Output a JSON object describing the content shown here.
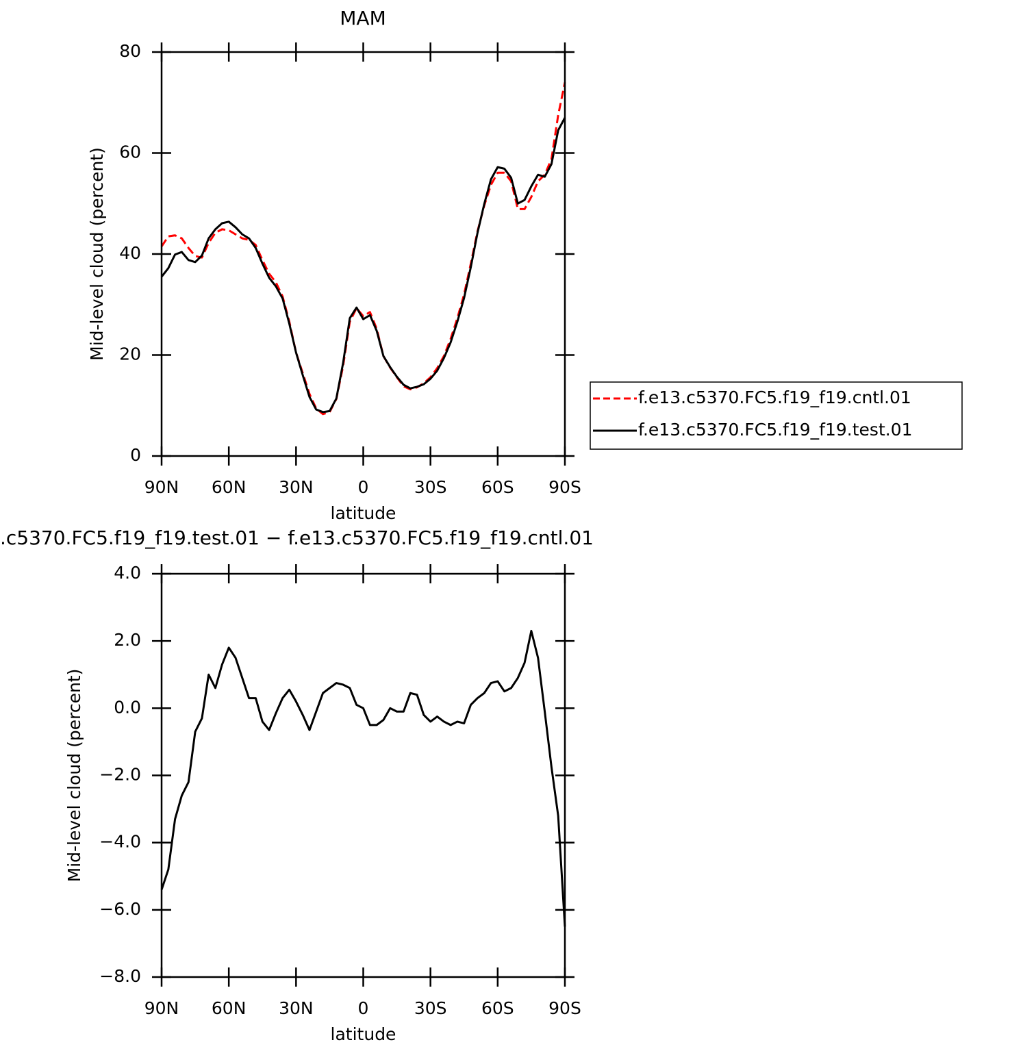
{
  "chart_data": [
    {
      "type": "line",
      "title": "MAM",
      "x_label": "latitude",
      "y_label": "Mid-level cloud (percent)",
      "x": [
        90,
        87,
        84,
        81,
        78,
        75,
        72,
        69,
        66,
        63,
        60,
        57,
        54,
        51,
        48,
        45,
        42,
        39,
        36,
        33,
        30,
        27,
        24,
        21,
        18,
        15,
        12,
        9,
        6,
        3,
        0,
        -3,
        -6,
        -9,
        -12,
        -15,
        -18,
        -21,
        -24,
        -27,
        -30,
        -33,
        -36,
        -39,
        -42,
        -45,
        -48,
        -51,
        -54,
        -57,
        -60,
        -63,
        -66,
        -69,
        -72,
        -75,
        -78,
        -81,
        -84,
        -87,
        -90
      ],
      "xlim": [
        90,
        -90
      ],
      "xticks": [
        {
          "value": 90,
          "label": "90N"
        },
        {
          "value": 60,
          "label": "60N"
        },
        {
          "value": 30,
          "label": "30N"
        },
        0,
        {
          "value": -30,
          "label": "30S"
        },
        {
          "value": -60,
          "label": "60S"
        },
        {
          "value": -90,
          "label": "90S"
        }
      ],
      "ylim": [
        0,
        80
      ],
      "yticks": [
        0,
        20,
        40,
        60,
        80
      ],
      "grid": false,
      "legend": "right",
      "series": [
        {
          "name": "f.e13.c5370.FC5.f19_f19.cntl.01",
          "color": "#ff0000",
          "line_style": "dashed",
          "values": [
            41.5,
            43.5,
            43.7,
            43.1,
            41.2,
            39.6,
            39.3,
            42.2,
            44.2,
            44.9,
            44.7,
            43.9,
            43.1,
            42.8,
            41.8,
            38.8,
            36.1,
            34.4,
            31.6,
            26.6,
            20.5,
            16.4,
            12.3,
            9.4,
            8.3,
            8.7,
            11.3,
            17.8,
            26.6,
            29.3,
            27.7,
            28.5,
            25.2,
            19.8,
            17.5,
            15.6,
            13.8,
            13.2,
            13.6,
            14.4,
            15.6,
            17.4,
            19.8,
            23.2,
            27.3,
            32.0,
            38.1,
            44.5,
            49.6,
            53.7,
            56.1,
            56.1,
            54.4,
            48.9,
            48.9,
            51.3,
            54.4,
            55.7,
            58.8,
            67.5,
            74.0
          ]
        },
        {
          "name": "f.e13.c5370.FC5.f19_f19.test.01",
          "color": "#000000",
          "line_style": "solid",
          "values": [
            35.5,
            37.2,
            39.9,
            40.4,
            38.8,
            38.4,
            39.7,
            43.1,
            44.9,
            46.1,
            46.4,
            45.3,
            43.9,
            43.1,
            41.2,
            38.1,
            35.3,
            33.6,
            31.2,
            26.2,
            20.5,
            16.0,
            11.7,
            9.2,
            8.7,
            8.9,
            11.4,
            18.4,
            27.3,
            29.4,
            27.1,
            27.9,
            24.8,
            19.8,
            17.6,
            15.7,
            14.1,
            13.4,
            13.7,
            14.2,
            15.3,
            16.9,
            19.4,
            22.5,
            26.6,
            31.3,
            37.4,
            44.2,
            49.9,
            54.8,
            57.2,
            56.9,
            55.1,
            50.0,
            50.7,
            53.4,
            55.7,
            55.3,
            57.8,
            64.5,
            67.0
          ]
        }
      ]
    },
    {
      "type": "line",
      "title": ".c5370.FC5.f19_f19.test.01 − f.e13.c5370.FC5.f19_f19.cntl.01",
      "x_label": "latitude",
      "y_label": "Mid-level cloud (percent)",
      "x": [
        90,
        87,
        84,
        81,
        78,
        75,
        72,
        69,
        66,
        63,
        60,
        57,
        54,
        51,
        48,
        45,
        42,
        39,
        36,
        33,
        30,
        27,
        24,
        21,
        18,
        15,
        12,
        9,
        6,
        3,
        0,
        -3,
        -6,
        -9,
        -12,
        -15,
        -18,
        -21,
        -24,
        -27,
        -30,
        -33,
        -36,
        -39,
        -42,
        -45,
        -48,
        -51,
        -54,
        -57,
        -60,
        -63,
        -66,
        -69,
        -72,
        -75,
        -78,
        -81,
        -84,
        -87,
        -90
      ],
      "xlim": [
        90,
        -90
      ],
      "xticks": [
        {
          "value": 90,
          "label": "90N"
        },
        {
          "value": 60,
          "label": "60N"
        },
        {
          "value": 30,
          "label": "30N"
        },
        0,
        {
          "value": -30,
          "label": "30S"
        },
        {
          "value": -60,
          "label": "60S"
        },
        {
          "value": -90,
          "label": "90S"
        }
      ],
      "ylim": [
        -8,
        4
      ],
      "yticks": [
        {
          "value": -8,
          "label": "−8.0"
        },
        {
          "value": -6,
          "label": "−6.0"
        },
        {
          "value": -4,
          "label": "−4.0"
        },
        {
          "value": -2,
          "label": "−2.0"
        },
        {
          "value": 0,
          "label": "0.0"
        },
        {
          "value": 2,
          "label": "2.0"
        },
        {
          "value": 4,
          "label": "4.0"
        }
      ],
      "grid": false,
      "series": [
        {
          "color": "#000000",
          "line_style": "solid",
          "values": [
            -5.4,
            -4.8,
            -3.3,
            -2.6,
            -2.2,
            -0.7,
            -0.3,
            1.0,
            0.6,
            1.3,
            1.8,
            1.5,
            0.9,
            0.3,
            0.3,
            -0.4,
            -0.65,
            -0.15,
            0.3,
            0.55,
            0.2,
            -0.2,
            -0.65,
            -0.1,
            0.45,
            0.6,
            0.75,
            0.7,
            0.6,
            0.1,
            0.0,
            -0.5,
            -0.5,
            -0.35,
            0.0,
            -0.1,
            -0.1,
            0.45,
            0.4,
            -0.2,
            -0.4,
            -0.25,
            -0.4,
            -0.5,
            -0.4,
            -0.45,
            0.1,
            0.3,
            0.45,
            0.75,
            0.8,
            0.5,
            0.6,
            0.9,
            1.35,
            2.3,
            1.5,
            -0.1,
            -1.75,
            -3.2,
            -6.5
          ]
        }
      ]
    }
  ]
}
